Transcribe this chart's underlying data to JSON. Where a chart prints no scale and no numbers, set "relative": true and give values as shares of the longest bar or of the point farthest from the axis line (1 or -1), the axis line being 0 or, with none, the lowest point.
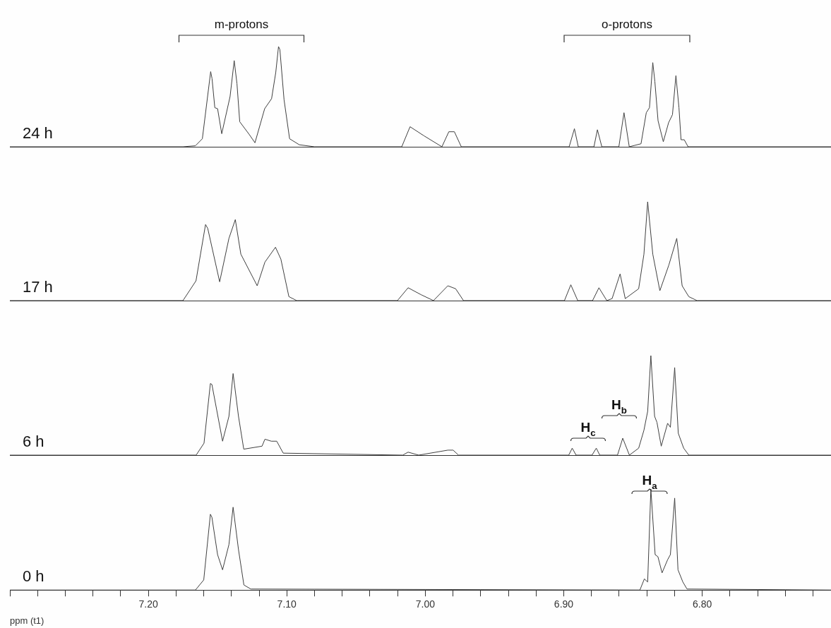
{
  "chart_data": [
    {
      "type": "line",
      "relative": true,
      "tick_labels": false,
      "xlim": [
        7.3,
        6.707
      ],
      "annotations": [
        "m-protons",
        "o-protons"
      ],
      "x": [
        7.3,
        7.175,
        7.166,
        7.161,
        7.155,
        7.154,
        7.152,
        7.15,
        7.147,
        7.141,
        7.138,
        7.136,
        7.134,
        7.127,
        7.123,
        7.116,
        7.111,
        7.108,
        7.106,
        7.105,
        7.102,
        7.098,
        7.091,
        7.08,
        7.017,
        7.011,
        7.001,
        6.988,
        6.983,
        6.979,
        6.974,
        6.8961,
        6.8923,
        6.8895,
        6.8782,
        6.8757,
        6.8725,
        6.8602,
        6.8565,
        6.8527,
        6.8442,
        6.8404,
        6.8381,
        6.8357,
        6.8342,
        6.8319,
        6.8281,
        6.8243,
        6.8215,
        6.819,
        6.8168,
        6.8153,
        6.813,
        6.8102,
        6.707
      ],
      "series": [
        {
          "name": "24 h",
          "color": "#404040",
          "values": [
            0,
            0,
            0.01,
            0.08,
            0.75,
            0.68,
            0.39,
            0.38,
            0.13,
            0.5,
            0.86,
            0.63,
            0.25,
            0.12,
            0.04,
            0.38,
            0.48,
            0.74,
            1.0,
            0.97,
            0.47,
            0.08,
            0.02,
            0,
            0,
            0.2,
            0.11,
            0,
            0.15,
            0.15,
            0,
            0,
            0.18,
            0,
            0,
            0.17,
            0,
            0,
            0.34,
            0,
            0.03,
            0.34,
            0.39,
            0.84,
            0.65,
            0.26,
            0.05,
            0.24,
            0.32,
            0.71,
            0.39,
            0.07,
            0.07,
            0,
            0
          ]
        }
      ]
    },
    {
      "type": "line",
      "relative": true,
      "tick_labels": false,
      "xlim": [
        7.3,
        6.707
      ],
      "x": [
        7.3,
        7.175,
        7.1656,
        7.1587,
        7.1571,
        7.1485,
        7.1418,
        7.1372,
        7.1332,
        7.1214,
        7.1158,
        7.1082,
        7.1043,
        7.0985,
        7.0929,
        7.0201,
        7.0124,
        7.0031,
        6.9941,
        6.9837,
        6.9781,
        6.9724,
        6.8995,
        6.8949,
        6.8899,
        6.8792,
        6.8746,
        6.8689,
        6.8651,
        6.8593,
        6.8556,
        6.8459,
        6.8421,
        6.8394,
        6.8357,
        6.8306,
        6.8241,
        6.8184,
        6.8145,
        6.8097,
        6.8038,
        6.707
      ],
      "series": [
        {
          "name": "17 h",
          "color": "#404040",
          "values": [
            0,
            0,
            0.2,
            0.77,
            0.73,
            0.19,
            0.63,
            0.82,
            0.47,
            0.15,
            0.39,
            0.54,
            0.42,
            0.04,
            0,
            0,
            0.13,
            0.06,
            0,
            0.15,
            0.12,
            0,
            0,
            0.16,
            0,
            0,
            0.13,
            0,
            0.02,
            0.27,
            0.02,
            0.12,
            0.47,
            1.0,
            0.47,
            0.1,
            0.36,
            0.63,
            0.15,
            0.04,
            0,
            0
          ]
        }
      ]
    },
    {
      "type": "line",
      "relative": true,
      "tick_labels": false,
      "xlim": [
        7.3,
        6.707
      ],
      "annotations": [
        "H$_{c}$",
        "H$_{b}$"
      ],
      "x": [
        7.3,
        7.1655,
        7.1598,
        7.1552,
        7.1541,
        7.1464,
        7.1418,
        7.1388,
        7.1349,
        7.1311,
        7.1179,
        7.1158,
        7.1112,
        7.1073,
        7.1026,
        7.0163,
        7.0124,
        7.0048,
        6.9837,
        6.9799,
        6.976,
        6.8964,
        6.8939,
        6.8911,
        6.8796,
        6.8765,
        6.874,
        6.8612,
        6.8574,
        6.8526,
        6.8459,
        6.8421,
        6.8394,
        6.8371,
        6.8344,
        6.8327,
        6.8296,
        6.825,
        6.823,
        6.8199,
        6.8173,
        6.8134,
        6.8097,
        6.707
      ],
      "series": [
        {
          "name": "6 h",
          "color": "#404040",
          "values": [
            0,
            0,
            0.12,
            0.72,
            0.71,
            0.14,
            0.39,
            0.82,
            0.39,
            0.06,
            0.09,
            0.16,
            0.14,
            0.14,
            0.02,
            0,
            0.03,
            0,
            0.05,
            0.05,
            0,
            0,
            0.07,
            0,
            0,
            0.07,
            0,
            0,
            0.17,
            0,
            0.07,
            0.25,
            0.44,
            1.0,
            0.39,
            0.33,
            0.09,
            0.32,
            0.28,
            0.88,
            0.22,
            0.07,
            0,
            0
          ]
        }
      ]
    },
    {
      "type": "line",
      "relative": true,
      "tick_labels": "x",
      "xlim": [
        7.3,
        6.707
      ],
      "xlabel": "ppm (t1)",
      "xticks": [
        {
          "value": 7.3,
          "label": null
        },
        {
          "value": 7.28,
          "label": null
        },
        {
          "value": 7.26,
          "label": null
        },
        {
          "value": 7.24,
          "label": null
        },
        {
          "value": 7.22,
          "label": null
        },
        {
          "value": 7.2,
          "label": "7.20"
        },
        {
          "value": 7.18,
          "label": null
        },
        {
          "value": 7.16,
          "label": null
        },
        {
          "value": 7.14,
          "label": null
        },
        {
          "value": 7.12,
          "label": null
        },
        {
          "value": 7.1,
          "label": "7.10"
        },
        {
          "value": 7.08,
          "label": null
        },
        {
          "value": 7.06,
          "label": null
        },
        {
          "value": 7.04,
          "label": null
        },
        {
          "value": 7.02,
          "label": null
        },
        {
          "value": 7.0,
          "label": "7.00"
        },
        {
          "value": 6.98,
          "label": null
        },
        {
          "value": 6.96,
          "label": null
        },
        {
          "value": 6.94,
          "label": null
        },
        {
          "value": 6.92,
          "label": null
        },
        {
          "value": 6.9,
          "label": "6.90"
        },
        {
          "value": 6.88,
          "label": null
        },
        {
          "value": 6.86,
          "label": null
        },
        {
          "value": 6.84,
          "label": null
        },
        {
          "value": 6.82,
          "label": null
        },
        {
          "value": 6.8,
          "label": "6.80"
        },
        {
          "value": 6.78,
          "label": null
        },
        {
          "value": 6.76,
          "label": null
        },
        {
          "value": 6.74,
          "label": null
        },
        {
          "value": 6.72,
          "label": null
        }
      ],
      "annotations": [
        "H$_{a}$"
      ],
      "x": [
        7.3,
        7.166,
        7.16,
        7.1552,
        7.1541,
        7.15,
        7.1464,
        7.1418,
        7.1388,
        7.1349,
        7.131,
        7.126,
        6.845,
        6.8418,
        6.8394,
        6.8371,
        6.834,
        6.832,
        6.829,
        6.825,
        6.823,
        6.8199,
        6.8175,
        6.814,
        6.811,
        6.707
      ],
      "series": [
        {
          "name": "0 h",
          "color": "#404040",
          "values": [
            0,
            0,
            0.1,
            0.75,
            0.72,
            0.35,
            0.2,
            0.45,
            0.82,
            0.4,
            0.05,
            0.01,
            0,
            0.11,
            0.08,
            1.0,
            0.35,
            0.33,
            0.17,
            0.3,
            0.35,
            0.91,
            0.2,
            0.08,
            0.01,
            0
          ]
        }
      ]
    }
  ]
}
